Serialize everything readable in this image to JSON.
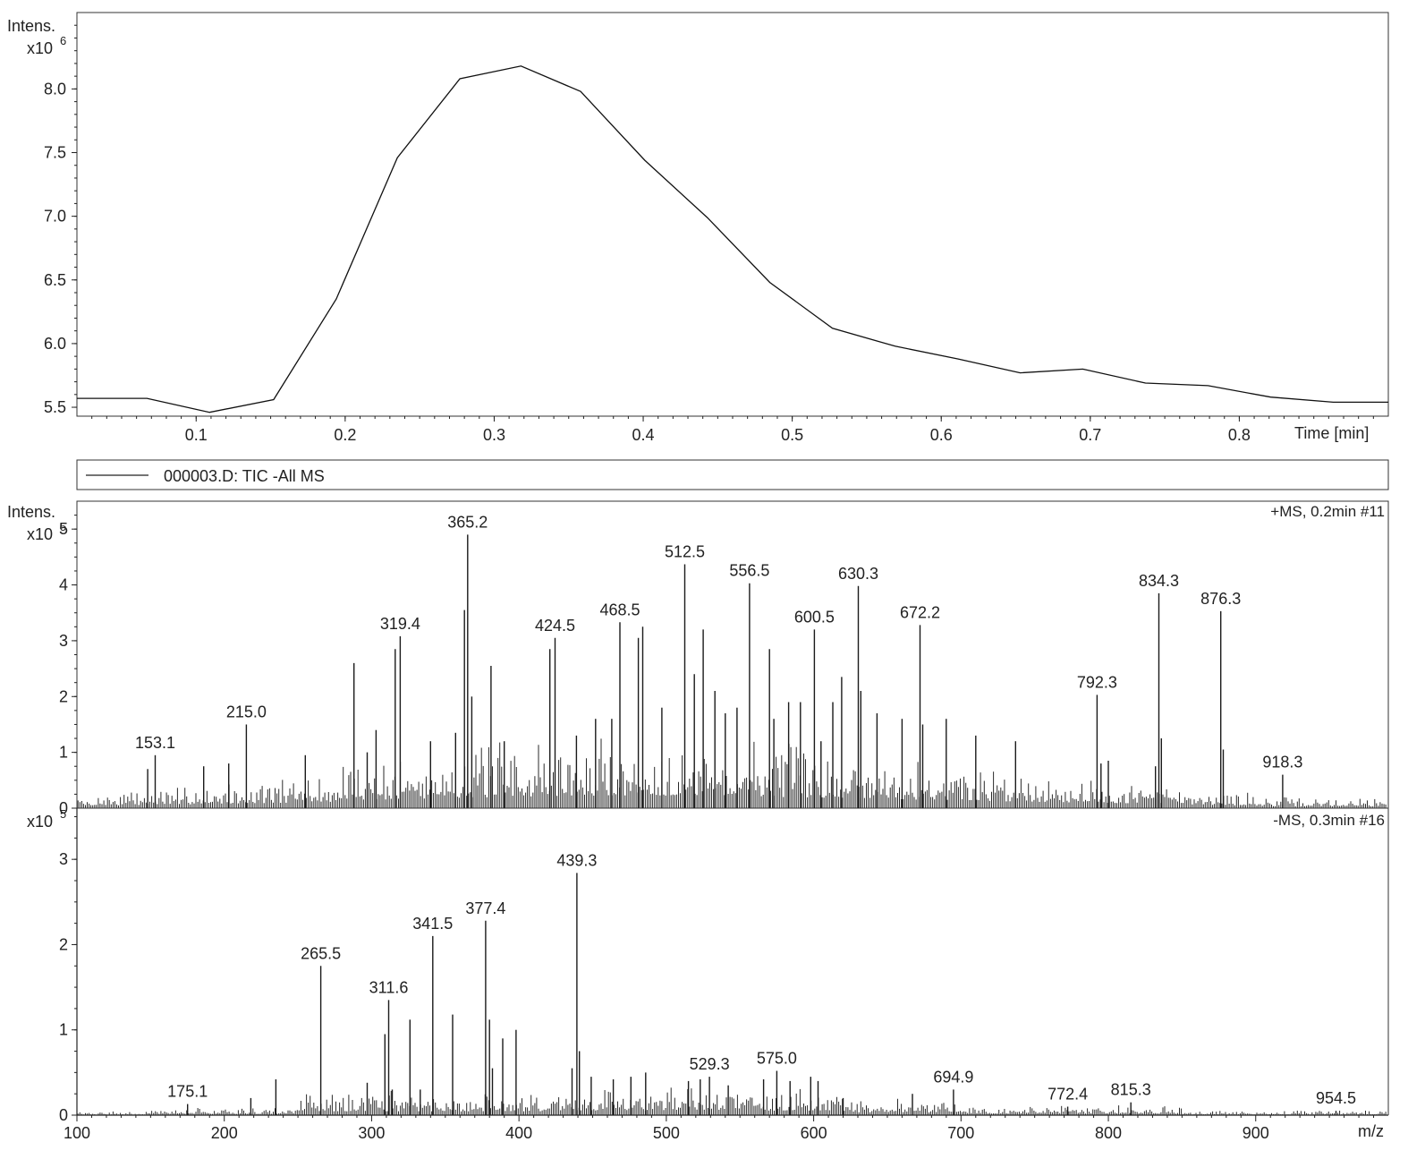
{
  "chart_data": [
    {
      "type": "line",
      "title": "",
      "ylabel": "Intens.",
      "y_multiplier": "x10",
      "y_exponent": "6",
      "xlabel": "Time [min]",
      "xlim": [
        0.02,
        0.9
      ],
      "ylim": [
        5.43,
        8.6
      ],
      "x_ticks": [
        0.1,
        0.2,
        0.3,
        0.4,
        0.5,
        0.6,
        0.7,
        0.8
      ],
      "x_tick_labels": [
        "0.1",
        "0.2",
        "0.3",
        "0.4",
        "0.5",
        "0.6",
        "0.7",
        "0.8"
      ],
      "y_ticks": [
        5.5,
        6.0,
        6.5,
        7.0,
        7.5,
        8.0
      ],
      "y_tick_labels": [
        "5.5",
        "6.0",
        "6.5",
        "7.0",
        "7.5",
        "8.0"
      ],
      "series": [
        {
          "name": "000003.D: TIC -All MS",
          "x": [
            0.02,
            0.067,
            0.109,
            0.152,
            0.194,
            0.235,
            0.277,
            0.318,
            0.358,
            0.401,
            0.443,
            0.485,
            0.527,
            0.569,
            0.611,
            0.653,
            0.695,
            0.737,
            0.779,
            0.821,
            0.863,
            0.9
          ],
          "y": [
            5.57,
            5.57,
            5.46,
            5.56,
            6.35,
            7.46,
            8.08,
            8.18,
            7.98,
            7.44,
            6.99,
            6.48,
            6.12,
            5.98,
            5.88,
            5.77,
            5.8,
            5.69,
            5.67,
            5.58,
            5.54,
            5.54
          ]
        }
      ]
    },
    {
      "type": "bar",
      "title": "",
      "ylabel": "Intens.",
      "y_multiplier": "x10",
      "y_exponent": "5",
      "spectrum_label": "+MS, 0.2min #11",
      "xlim": [
        100,
        990
      ],
      "ylim": [
        0,
        5.5
      ],
      "y_ticks": [
        0,
        1,
        2,
        3,
        4,
        5
      ],
      "y_tick_labels": [
        "0",
        "1",
        "2",
        "3",
        "4",
        "5"
      ],
      "labeled_peaks": [
        {
          "mz": 153.1,
          "intensity": 0.95,
          "label": "153.1"
        },
        {
          "mz": 215.0,
          "intensity": 1.5,
          "label": "215.0"
        },
        {
          "mz": 319.4,
          "intensity": 3.08,
          "label": "319.4"
        },
        {
          "mz": 365.2,
          "intensity": 4.9,
          "label": "365.2"
        },
        {
          "mz": 424.5,
          "intensity": 3.05,
          "label": "424.5"
        },
        {
          "mz": 468.5,
          "intensity": 3.33,
          "label": "468.5"
        },
        {
          "mz": 512.5,
          "intensity": 4.37,
          "label": "512.5"
        },
        {
          "mz": 556.5,
          "intensity": 4.03,
          "label": "556.5"
        },
        {
          "mz": 600.5,
          "intensity": 3.2,
          "label": "600.5"
        },
        {
          "mz": 630.3,
          "intensity": 3.98,
          "label": "630.3"
        },
        {
          "mz": 672.2,
          "intensity": 3.28,
          "label": "672.2"
        },
        {
          "mz": 792.3,
          "intensity": 2.03,
          "label": "792.3"
        },
        {
          "mz": 834.3,
          "intensity": 3.85,
          "label": "834.3"
        },
        {
          "mz": 876.3,
          "intensity": 3.53,
          "label": "876.3"
        },
        {
          "mz": 918.3,
          "intensity": 0.6,
          "label": "918.3"
        }
      ],
      "other_peaks": [
        {
          "mz": 148,
          "intensity": 0.7
        },
        {
          "mz": 186,
          "intensity": 0.75
        },
        {
          "mz": 203,
          "intensity": 0.8
        },
        {
          "mz": 255,
          "intensity": 0.95
        },
        {
          "mz": 288,
          "intensity": 2.6
        },
        {
          "mz": 297,
          "intensity": 1.0
        },
        {
          "mz": 303,
          "intensity": 1.4
        },
        {
          "mz": 316,
          "intensity": 2.85
        },
        {
          "mz": 340,
          "intensity": 1.2
        },
        {
          "mz": 357,
          "intensity": 1.35
        },
        {
          "mz": 363,
          "intensity": 3.55
        },
        {
          "mz": 368,
          "intensity": 2.0
        },
        {
          "mz": 381,
          "intensity": 2.55
        },
        {
          "mz": 390,
          "intensity": 1.2
        },
        {
          "mz": 421,
          "intensity": 2.85
        },
        {
          "mz": 439,
          "intensity": 1.3
        },
        {
          "mz": 452,
          "intensity": 1.6
        },
        {
          "mz": 463,
          "intensity": 1.6
        },
        {
          "mz": 481,
          "intensity": 3.05
        },
        {
          "mz": 484,
          "intensity": 3.25
        },
        {
          "mz": 497,
          "intensity": 1.8
        },
        {
          "mz": 519,
          "intensity": 2.4
        },
        {
          "mz": 525,
          "intensity": 3.2
        },
        {
          "mz": 533,
          "intensity": 2.1
        },
        {
          "mz": 540,
          "intensity": 1.7
        },
        {
          "mz": 548,
          "intensity": 1.8
        },
        {
          "mz": 570,
          "intensity": 2.85
        },
        {
          "mz": 573,
          "intensity": 1.6
        },
        {
          "mz": 583,
          "intensity": 1.9
        },
        {
          "mz": 591,
          "intensity": 1.9
        },
        {
          "mz": 605,
          "intensity": 1.2
        },
        {
          "mz": 613,
          "intensity": 1.9
        },
        {
          "mz": 619,
          "intensity": 2.35
        },
        {
          "mz": 632,
          "intensity": 2.1
        },
        {
          "mz": 643,
          "intensity": 1.7
        },
        {
          "mz": 660,
          "intensity": 1.6
        },
        {
          "mz": 674,
          "intensity": 1.5
        },
        {
          "mz": 690,
          "intensity": 1.6
        },
        {
          "mz": 710,
          "intensity": 1.3
        },
        {
          "mz": 737,
          "intensity": 1.2
        },
        {
          "mz": 795,
          "intensity": 0.8
        },
        {
          "mz": 800,
          "intensity": 0.85
        },
        {
          "mz": 836,
          "intensity": 1.25
        },
        {
          "mz": 832,
          "intensity": 0.75
        },
        {
          "mz": 878,
          "intensity": 1.05
        }
      ]
    },
    {
      "type": "bar",
      "title": "",
      "ylabel": "",
      "y_multiplier": "x10",
      "y_exponent": "5",
      "spectrum_label": "-MS, 0.3min #16",
      "xlabel": "m/z",
      "xlim": [
        100,
        990
      ],
      "ylim": [
        0,
        3.6
      ],
      "x_ticks": [
        100,
        200,
        300,
        400,
        500,
        600,
        700,
        800,
        900
      ],
      "x_tick_labels": [
        "100",
        "200",
        "300",
        "400",
        "500",
        "600",
        "700",
        "800",
        "900"
      ],
      "y_ticks": [
        0,
        1,
        2,
        3
      ],
      "y_tick_labels": [
        "0",
        "1",
        "2",
        "3"
      ],
      "labeled_peaks": [
        {
          "mz": 175.1,
          "intensity": 0.13,
          "label": "175.1"
        },
        {
          "mz": 265.5,
          "intensity": 1.75,
          "label": "265.5"
        },
        {
          "mz": 311.6,
          "intensity": 1.35,
          "label": "311.6"
        },
        {
          "mz": 341.5,
          "intensity": 2.1,
          "label": "341.5"
        },
        {
          "mz": 377.4,
          "intensity": 2.28,
          "label": "377.4"
        },
        {
          "mz": 439.3,
          "intensity": 2.84,
          "label": "439.3"
        },
        {
          "mz": 529.3,
          "intensity": 0.45,
          "label": "529.3"
        },
        {
          "mz": 575.0,
          "intensity": 0.52,
          "label": "575.0"
        },
        {
          "mz": 694.9,
          "intensity": 0.3,
          "label": "694.9"
        },
        {
          "mz": 772.4,
          "intensity": 0.1,
          "label": "772.4"
        },
        {
          "mz": 815.3,
          "intensity": 0.15,
          "label": "815.3"
        },
        {
          "mz": 954.5,
          "intensity": 0.05,
          "label": "954.5"
        }
      ],
      "other_peaks": [
        {
          "mz": 218,
          "intensity": 0.2
        },
        {
          "mz": 235,
          "intensity": 0.42
        },
        {
          "mz": 297,
          "intensity": 0.38
        },
        {
          "mz": 309,
          "intensity": 0.95
        },
        {
          "mz": 314,
          "intensity": 0.3
        },
        {
          "mz": 326,
          "intensity": 1.12
        },
        {
          "mz": 333,
          "intensity": 0.3
        },
        {
          "mz": 355,
          "intensity": 1.18
        },
        {
          "mz": 380,
          "intensity": 1.12
        },
        {
          "mz": 382,
          "intensity": 0.55
        },
        {
          "mz": 389,
          "intensity": 0.9
        },
        {
          "mz": 398,
          "intensity": 1.0
        },
        {
          "mz": 436,
          "intensity": 0.55
        },
        {
          "mz": 441,
          "intensity": 0.75
        },
        {
          "mz": 449,
          "intensity": 0.45
        },
        {
          "mz": 464,
          "intensity": 0.42
        },
        {
          "mz": 476,
          "intensity": 0.45
        },
        {
          "mz": 486,
          "intensity": 0.5
        },
        {
          "mz": 515,
          "intensity": 0.4
        },
        {
          "mz": 523,
          "intensity": 0.42
        },
        {
          "mz": 542,
          "intensity": 0.35
        },
        {
          "mz": 566,
          "intensity": 0.42
        },
        {
          "mz": 584,
          "intensity": 0.4
        },
        {
          "mz": 598,
          "intensity": 0.45
        },
        {
          "mz": 603,
          "intensity": 0.4
        },
        {
          "mz": 620,
          "intensity": 0.2
        },
        {
          "mz": 667,
          "intensity": 0.25
        }
      ]
    }
  ],
  "legend": {
    "entry": "000003.D: TIC -All MS"
  }
}
